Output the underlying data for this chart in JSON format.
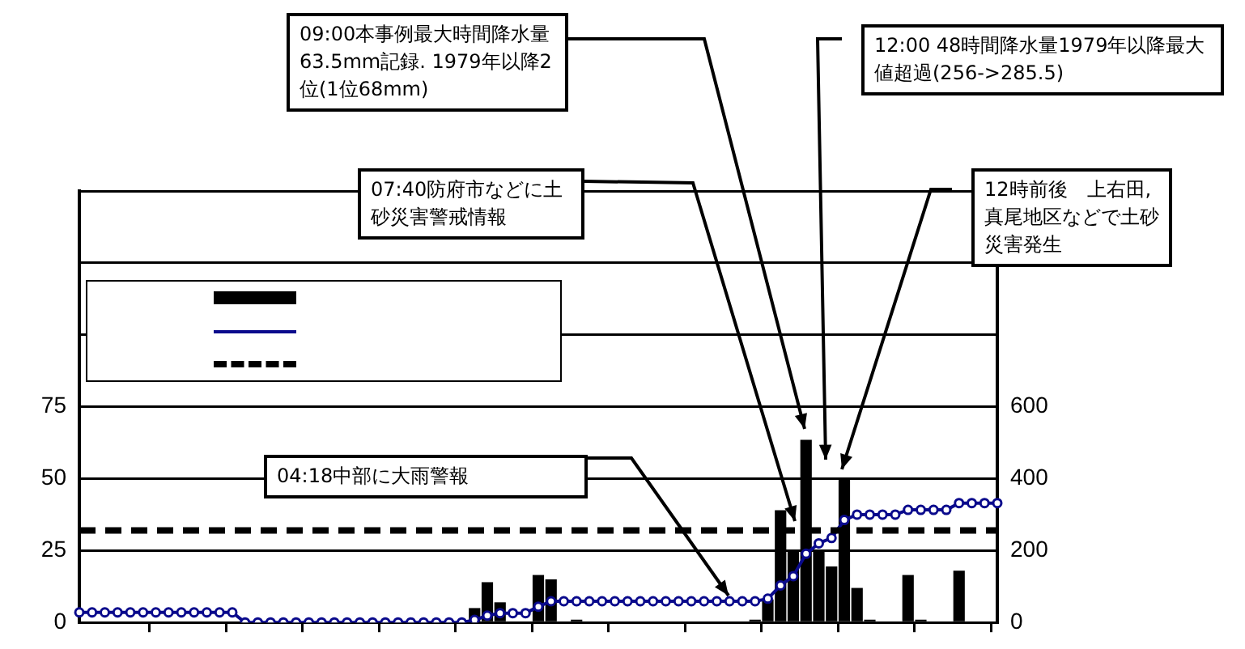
{
  "chart_data": {
    "type": "bar",
    "categories": [
      null,
      null,
      null,
      null,
      null,
      null,
      null,
      null,
      null,
      null,
      null,
      null,
      null,
      null,
      null,
      null,
      null,
      null,
      null,
      null,
      null,
      null,
      null,
      null,
      null,
      null,
      null,
      null,
      null,
      null,
      null,
      null,
      null,
      null,
      null,
      null,
      null,
      null,
      null,
      null,
      null,
      null,
      null,
      null,
      null,
      null,
      null,
      null,
      null,
      null,
      null,
      null,
      null,
      null,
      null,
      null,
      null,
      null,
      null,
      null,
      null,
      null,
      null,
      null,
      null,
      null,
      null,
      null,
      null,
      null,
      null,
      null,
      null
    ],
    "series": [
      {
        "color": "#000000",
        "values": [
          0,
          0,
          0,
          0,
          0,
          0,
          0,
          0,
          0,
          0,
          0,
          0,
          0,
          0,
          0,
          0,
          0,
          0,
          0,
          0,
          0,
          0,
          0,
          0,
          0,
          0,
          0,
          0,
          0,
          0,
          0,
          5,
          14,
          7,
          0,
          0,
          16.5,
          15,
          0,
          1,
          0,
          0,
          0,
          0,
          0,
          0,
          0,
          0,
          0,
          0,
          0,
          0,
          0,
          1,
          8,
          39,
          25,
          63.5,
          25,
          19.5,
          50,
          12,
          1,
          0,
          0,
          16.5,
          1,
          0,
          0,
          18,
          0,
          0,
          0
        ]
      },
      {
        "type": "line",
        "axis": "y2",
        "color": "#0a0a8c",
        "marker": "circle",
        "values": [
          28,
          28,
          28,
          28,
          28,
          28,
          28,
          28,
          28,
          28,
          28,
          28,
          28,
          0,
          0,
          0,
          0,
          0,
          0,
          0,
          0,
          0,
          0,
          0,
          0,
          0,
          0,
          0,
          0,
          0,
          0,
          7,
          19,
          26,
          26,
          26,
          44,
          59,
          59,
          59,
          59,
          59,
          59,
          59,
          59,
          59,
          59,
          59,
          59,
          59,
          59,
          59,
          59,
          59,
          66,
          103,
          129,
          191,
          220,
          235,
          285,
          300,
          300,
          300,
          300,
          313,
          313,
          313,
          313,
          332,
          332,
          332,
          332
        ]
      }
    ],
    "ylim": [
      0,
      150
    ],
    "yticks": [
      0,
      25,
      50,
      75,
      {
        "value": 100,
        "label": null
      },
      {
        "value": 125,
        "label": null
      },
      {
        "value": 150,
        "label": null
      }
    ],
    "y2lim": [
      0,
      1200
    ],
    "y2ticks": [
      0,
      200,
      400,
      600
    ],
    "ref_lines": [
      {
        "axis": "y2",
        "value": 256,
        "color": "#000000",
        "line_style": "dashed"
      }
    ],
    "grid": "y",
    "tick_labels": "y",
    "annotations": [
      "04:18中部に大雨警報",
      "07:40防府市などに土砂災害警戒情報",
      "09:00本事例最大時間降水量63.5mm記録. 1979年以降2位(1位68mm)",
      "12:00 48時間降水量1979年以降最大値超過(256->285.5)",
      "12時前後　上右田,真尾地区などで土砂災害発生"
    ]
  }
}
